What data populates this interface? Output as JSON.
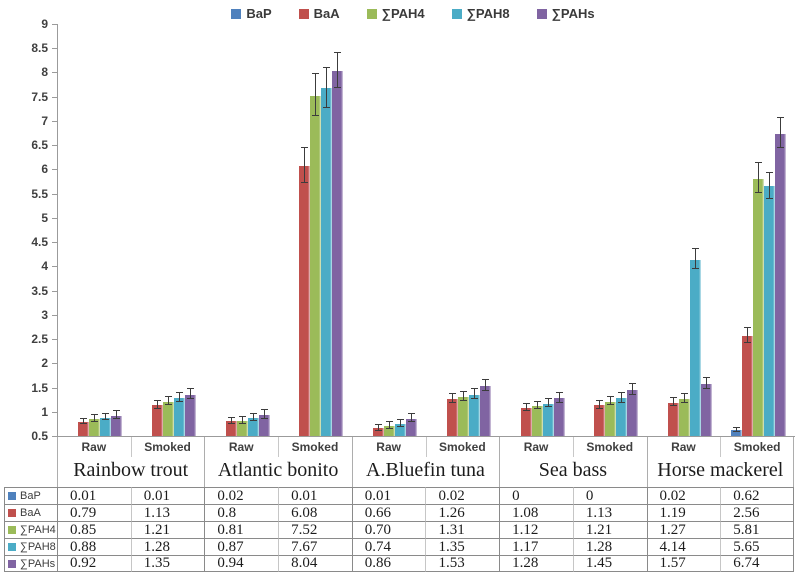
{
  "colors": {
    "axis": "#9b9b9b",
    "error_bar": "#3c3c3c",
    "table_border": "#8a8a8a",
    "table_border_light": "#c6c6c6"
  },
  "chart_data": {
    "type": "bar",
    "title": "",
    "xlabel": "",
    "ylabel": "",
    "ylim": [
      0.5,
      9
    ],
    "ytick_step": 0.5,
    "ytick_labels": [
      "9",
      "8.5",
      "8",
      "7.5",
      "7",
      "6.5",
      "6",
      "5.5",
      "5",
      "4.5",
      "4",
      "3.5",
      "3",
      "2.5",
      "2",
      "1.5",
      "1",
      "0.5"
    ],
    "grid": false,
    "legend_position": "top-center",
    "error_bars": true,
    "categories": [
      {
        "label": "Rainbow trout",
        "sub": [
          "Raw",
          "Smoked"
        ]
      },
      {
        "label": "Atlantic bonito",
        "sub": [
          "Raw",
          "Smoked"
        ]
      },
      {
        "label": "A.Bluefin tuna",
        "sub": [
          "Raw",
          "Smoked"
        ]
      },
      {
        "label": "Sea bass",
        "sub": [
          "Raw",
          "Smoked"
        ]
      },
      {
        "label": "Horse mackerel",
        "sub": [
          "Raw",
          "Smoked"
        ]
      }
    ],
    "series": [
      {
        "name": "BaP",
        "color": "#4F81BD",
        "values": [
          0.01,
          0.01,
          0.02,
          0.01,
          0.01,
          0.02,
          0,
          0,
          0.02,
          0.62
        ],
        "errors": [
          0,
          0,
          0,
          0,
          0,
          0,
          0,
          0,
          0,
          0.03
        ],
        "display": [
          "0.01",
          "0.01",
          "0.02",
          "0.01",
          "0.01",
          "0.02",
          "0",
          "0",
          "0.02",
          "0.62"
        ]
      },
      {
        "name": "BaA",
        "color": "#C0504D",
        "values": [
          0.79,
          1.13,
          0.8,
          6.08,
          0.66,
          1.26,
          1.08,
          1.13,
          1.19,
          2.56
        ],
        "errors": [
          0.05,
          0.07,
          0.05,
          0.35,
          0.05,
          0.08,
          0.07,
          0.08,
          0.07,
          0.15
        ],
        "display": [
          "0.79",
          "1.13",
          "0.8",
          "6.08",
          "0.66",
          "1.26",
          "1.08",
          "1.13",
          "1.19",
          "2.56"
        ]
      },
      {
        "name": "∑PAH4",
        "color": "#9BBB59",
        "values": [
          0.85,
          1.21,
          0.81,
          7.52,
          0.7,
          1.31,
          1.12,
          1.21,
          1.27,
          5.81
        ],
        "errors": [
          0.06,
          0.08,
          0.06,
          0.42,
          0.06,
          0.08,
          0.07,
          0.08,
          0.08,
          0.3
        ],
        "display": [
          "0.85",
          "1.21",
          "0.81",
          "7.52",
          "0.70",
          "1.31",
          "1.12",
          "1.21",
          "1.27",
          "5.81"
        ]
      },
      {
        "name": "∑PAH8",
        "color": "#4BACC6",
        "values": [
          0.88,
          1.28,
          0.87,
          7.67,
          0.74,
          1.35,
          1.17,
          1.28,
          4.14,
          5.65
        ],
        "errors": [
          0.05,
          0.08,
          0.07,
          0.4,
          0.06,
          0.09,
          0.08,
          0.09,
          0.2,
          0.25
        ],
        "display": [
          "0.88",
          "1.28",
          "0.87",
          "7.67",
          "0.74",
          "1.35",
          "1.17",
          "1.28",
          "4.14",
          "5.65"
        ]
      },
      {
        "name": "∑PAHs",
        "color": "#8064A2",
        "values": [
          0.92,
          1.35,
          0.94,
          8.04,
          0.86,
          1.53,
          1.28,
          1.45,
          1.57,
          6.74
        ],
        "errors": [
          0.07,
          0.09,
          0.08,
          0.35,
          0.08,
          0.1,
          0.09,
          0.1,
          0.1,
          0.3
        ],
        "display": [
          "0.92",
          "1.35",
          "0.94",
          "8.04",
          "0.86",
          "1.53",
          "1.28",
          "1.45",
          "1.57",
          "6.74"
        ]
      }
    ]
  }
}
